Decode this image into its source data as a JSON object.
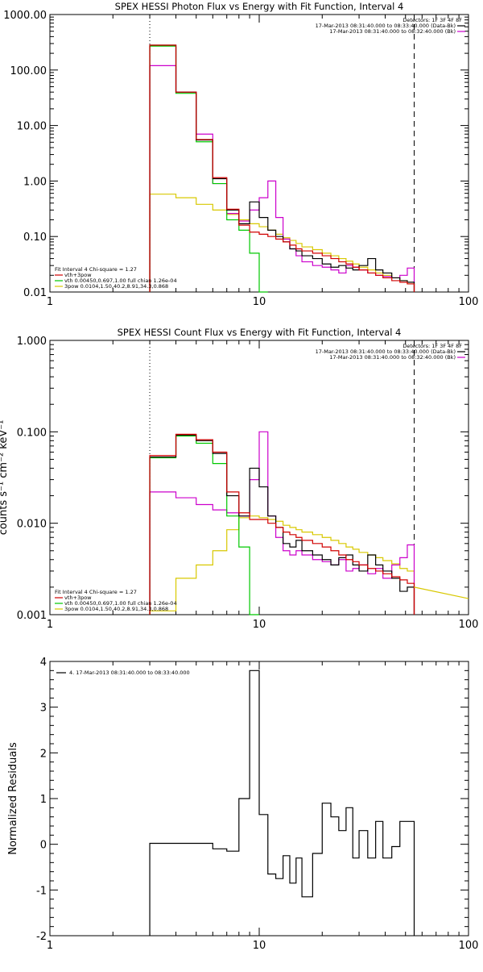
{
  "chart_data": [
    {
      "type": "line",
      "title": "SPEX HESSI Photon Flux vs Energy with Fit Function, Interval 4",
      "xlabel": "",
      "ylabel": "",
      "xscale": "log",
      "yscale": "log",
      "xlim": [
        1,
        100
      ],
      "ylim": [
        0.01,
        1000
      ],
      "x_ticks": [
        "1",
        "10",
        "100"
      ],
      "y_ticks": [
        "0.01",
        "0.10",
        "1.00",
        "10.00",
        "100.00",
        "1000.00"
      ],
      "vlines": [
        {
          "x": 3,
          "style": "dotted"
        },
        {
          "x": 55,
          "style": "dashed"
        }
      ],
      "legend_top": [
        "Detectors: 1F 3F 4F 8F",
        "17-Mar-2013 08:31:40.000 to 08:33:40.000 (Data-Bk)",
        "17-Mar-2013 08:31:40.000 to 08:32:40.000 (Bk)"
      ],
      "legend_bottom": [
        "Fit Interval 4   Chi-square = 1.27",
        "vth+3pow",
        "vth 0.00450,0.697,1.00   full chian 1.26e-04",
        "3pow 0.0104,1.50,40.2,8.91,34.3,0.868"
      ],
      "bin_edges": [
        3,
        4,
        5,
        6,
        7,
        8,
        9,
        10,
        11,
        12,
        13,
        14,
        15,
        16,
        18,
        20,
        22,
        24,
        26,
        28,
        30,
        33,
        36,
        39,
        43,
        47,
        51,
        55
      ],
      "series": [
        {
          "name": "17-Mar-2013 08:31:40.000 to 08:33:40.000 (Data-Bk)",
          "color": "#000000",
          "values": [
            280,
            40,
            5.5,
            1.1,
            0.3,
            0.17,
            0.42,
            0.22,
            0.13,
            0.1,
            0.08,
            0.06,
            0.055,
            0.045,
            0.04,
            0.032,
            0.028,
            0.03,
            0.027,
            0.025,
            0.03,
            0.04,
            0.025,
            0.022,
            0.018,
            0.016,
            0.015
          ]
        },
        {
          "name": "vth+3pow",
          "color": "#d00000",
          "values": [
            280,
            40,
            5.6,
            1.15,
            0.31,
            0.16,
            0.12,
            0.11,
            0.1,
            0.09,
            0.08,
            0.07,
            0.06,
            0.055,
            0.05,
            0.045,
            0.04,
            0.035,
            0.032,
            0.028,
            0.025,
            0.022,
            0.02,
            0.018,
            0.016,
            0.015,
            0.014
          ]
        },
        {
          "name": "vth 0.00450,0.697,1.00   full chian 1.26e-04",
          "color": "#00c800",
          "values": [
            270,
            38,
            5.1,
            0.9,
            0.2,
            0.13,
            0.05,
            0.008
          ]
        },
        {
          "name": "3pow 0.0104,1.50,40.2,8.91,34.3,0.868",
          "color": "#d8c800",
          "values": [
            0.58,
            0.5,
            0.38,
            0.3,
            0.25,
            0.2,
            0.17,
            0.15,
            0.13,
            0.11,
            0.095,
            0.085,
            0.075,
            0.065,
            0.058,
            0.05,
            0.045,
            0.04,
            0.036,
            0.032,
            0.028,
            0.025,
            0.022,
            0.02,
            0.018,
            0.016,
            0.014
          ]
        },
        {
          "name": "17-Mar-2013 08:31:40.000 to 08:32:40.000 (Bk)",
          "color": "#cc00cc",
          "values": [
            120,
            40,
            7,
            0.9,
            0.26,
            0.19,
            0.3,
            0.5,
            1.0,
            0.22,
            0.09,
            0.06,
            0.045,
            0.035,
            0.03,
            0.028,
            0.025,
            0.022,
            0.03,
            0.028,
            0.025,
            0.022,
            0.02,
            0.019,
            0.018,
            0.02,
            0.027
          ]
        }
      ]
    },
    {
      "type": "line",
      "title": "SPEX HESSI Count Flux vs Energy with Fit Function, Interval 4",
      "xlabel": "",
      "ylabel": "counts s⁻¹ cm⁻² keV⁻¹",
      "xscale": "log",
      "yscale": "log",
      "xlim": [
        1,
        100
      ],
      "ylim": [
        0.001,
        1
      ],
      "x_ticks": [
        "1",
        "10",
        "100"
      ],
      "y_ticks": [
        "0.001",
        "0.010",
        "0.100",
        "1.000"
      ],
      "vlines": [
        {
          "x": 3,
          "style": "dotted"
        },
        {
          "x": 55,
          "style": "dashed"
        }
      ],
      "legend_top": [
        "Detectors: 1F 3F 4F 8F",
        "17-Mar-2013 08:31:40.000 to 08:33:40.000 (Data-Bk)",
        "17-Mar-2013 08:31:40.000 to 08:32:40.000 (Bk)"
      ],
      "legend_bottom": [
        "Fit Interval 4   Chi-square = 1.27",
        "vth+3pow",
        "vth 0.00450,0.697,1.00   full chian 1.26e-04",
        "3pow 0.0104,1.50,40.2,8.91,34.3,0.868"
      ],
      "bin_edges": [
        3,
        4,
        5,
        6,
        7,
        8,
        9,
        10,
        11,
        12,
        13,
        14,
        15,
        16,
        18,
        20,
        22,
        24,
        26,
        28,
        30,
        33,
        36,
        39,
        43,
        47,
        51,
        55
      ],
      "series": [
        {
          "name": "17-Mar-2013 08:31:40.000 to 08:33:40.000 (Data-Bk)",
          "color": "#000000",
          "values": [
            0.053,
            0.092,
            0.08,
            0.058,
            0.02,
            0.012,
            0.04,
            0.025,
            0.012,
            0.009,
            0.006,
            0.0055,
            0.0065,
            0.005,
            0.0045,
            0.004,
            0.0035,
            0.0042,
            0.0045,
            0.0035,
            0.003,
            0.0045,
            0.0035,
            0.003,
            0.0025,
            0.0018,
            0.002
          ]
        },
        {
          "name": "vth+3pow",
          "color": "#d00000",
          "values": [
            0.055,
            0.094,
            0.082,
            0.06,
            0.022,
            0.013,
            0.011,
            0.011,
            0.01,
            0.009,
            0.008,
            0.0075,
            0.007,
            0.0065,
            0.006,
            0.0055,
            0.005,
            0.0045,
            0.004,
            0.0038,
            0.0035,
            0.0032,
            0.003,
            0.0028,
            0.0026,
            0.0024,
            0.0022
          ]
        },
        {
          "name": "vth 0.00450,0.697,1.00   full chian 1.26e-04",
          "color": "#00c800",
          "values": [
            0.052,
            0.09,
            0.075,
            0.045,
            0.012,
            0.0055,
            0.001
          ]
        },
        {
          "name": "3pow 0.0104,1.50,40.2,8.91,34.3,0.868",
          "color": "#d8c800",
          "values": [
            0.0011,
            0.0025,
            0.0035,
            0.005,
            0.0085,
            0.0115,
            0.012,
            0.0115,
            0.011,
            0.0105,
            0.0095,
            0.009,
            0.0085,
            0.008,
            0.0075,
            0.007,
            0.0065,
            0.006,
            0.0055,
            0.0052,
            0.0048,
            0.0045,
            0.0042,
            0.0039,
            0.0036,
            0.0032,
            0.003
          ]
        },
        {
          "name": "17-Mar-2013 08:31:40.000 to 08:32:40.000 (Bk)",
          "color": "#cc00cc",
          "values": [
            0.022,
            0.019,
            0.016,
            0.014,
            0.013,
            0.012,
            0.03,
            0.1,
            0.012,
            0.007,
            0.005,
            0.0045,
            0.005,
            0.0045,
            0.004,
            0.0038,
            0.0035,
            0.004,
            0.003,
            0.0032,
            0.0035,
            0.0028,
            0.0032,
            0.0025,
            0.0035,
            0.0042,
            0.0058
          ]
        }
      ],
      "tail_after_55": {
        "color": "#d8c800",
        "x": [
          55,
          100
        ],
        "values": [
          0.002,
          0.0015
        ]
      }
    },
    {
      "type": "line",
      "title": "",
      "xlabel": "",
      "ylabel": "Normalized Residuals",
      "xscale": "log",
      "yscale": "linear",
      "xlim": [
        1,
        100
      ],
      "ylim": [
        -2,
        4
      ],
      "x_ticks": [
        "1",
        "10",
        "100"
      ],
      "y_ticks": [
        "-2",
        "-1",
        "0",
        "1",
        "2",
        "3",
        "4"
      ],
      "legend": [
        "4. 17-Mar-2013 08:31:40.000 to 08:33:40.000"
      ],
      "bin_edges": [
        3,
        4,
        5,
        6,
        7,
        8,
        9,
        10,
        11,
        12,
        13,
        14,
        15,
        16,
        18,
        20,
        22,
        24,
        26,
        28,
        30,
        33,
        36,
        39,
        43,
        47,
        51,
        55
      ],
      "series": [
        {
          "name": "4. 17-Mar-2013 08:31:40.000 to 08:33:40.000",
          "color": "#000000",
          "values": [
            0.02,
            0.02,
            0.02,
            -0.1,
            -0.15,
            1.0,
            3.8,
            0.65,
            -0.65,
            -0.75,
            -0.25,
            -0.85,
            -0.3,
            -1.15,
            -0.2,
            0.9,
            0.6,
            0.3,
            0.8,
            -0.3,
            0.3,
            -0.3,
            0.5,
            -0.3,
            -0.05,
            0.5,
            0.5
          ]
        }
      ]
    }
  ]
}
